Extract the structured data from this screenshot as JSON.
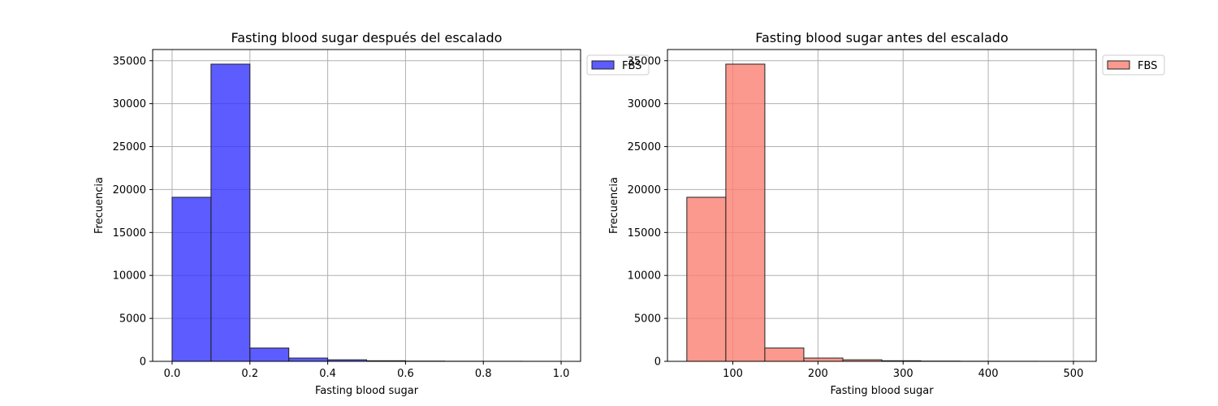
{
  "chart_data": [
    {
      "type": "bar",
      "title": "Fasting blood sugar después del escalado",
      "xlabel": "Fasting blood sugar",
      "ylabel": "Frecuencia",
      "xlim": [
        -0.05,
        1.05
      ],
      "ylim": [
        0,
        36300
      ],
      "xticks": [
        0.0,
        0.2,
        0.4,
        0.6,
        0.8,
        1.0
      ],
      "xtick_labels": [
        "0.0",
        "0.2",
        "0.4",
        "0.6",
        "0.8",
        "1.0"
      ],
      "yticks": [
        0,
        5000,
        10000,
        15000,
        20000,
        25000,
        30000,
        35000
      ],
      "ytick_labels": [
        "0",
        "5000",
        "10000",
        "15000",
        "20000",
        "25000",
        "30000",
        "35000"
      ],
      "bin_edges": [
        0.0,
        0.1,
        0.2,
        0.3,
        0.4,
        0.5,
        0.6,
        0.7,
        0.8,
        0.9,
        1.0
      ],
      "values": [
        19100,
        34600,
        1550,
        380,
        180,
        70,
        30,
        15,
        10,
        5
      ],
      "color": "#3333ff",
      "edge_color": "#222222",
      "grid": true,
      "legend": {
        "entries": [
          "FBS"
        ],
        "placement": "outside-top-right"
      }
    },
    {
      "type": "bar",
      "title": "Fasting blood sugar antes del escalado",
      "xlabel": "Fasting blood sugar",
      "ylabel": "Frecuencia",
      "xlim": [
        23.25,
        526.75
      ],
      "ylim": [
        0,
        36300
      ],
      "xticks": [
        100,
        200,
        300,
        400,
        500
      ],
      "xtick_labels": [
        "100",
        "200",
        "300",
        "400",
        "500"
      ],
      "yticks": [
        0,
        5000,
        10000,
        15000,
        20000,
        25000,
        30000,
        35000
      ],
      "ytick_labels": [
        "0",
        "5000",
        "10000",
        "15000",
        "20000",
        "25000",
        "30000",
        "35000"
      ],
      "bin_edges": [
        46,
        91.8,
        137.6,
        183.4,
        229.2,
        275,
        320.8,
        366.6,
        412.4,
        458.2,
        504
      ],
      "values": [
        19100,
        34600,
        1550,
        380,
        180,
        70,
        30,
        15,
        10,
        5
      ],
      "color": "#fa8072",
      "edge_color": "#222222",
      "grid": true,
      "legend": {
        "entries": [
          "FBS"
        ],
        "placement": "outside-top-right"
      }
    }
  ]
}
